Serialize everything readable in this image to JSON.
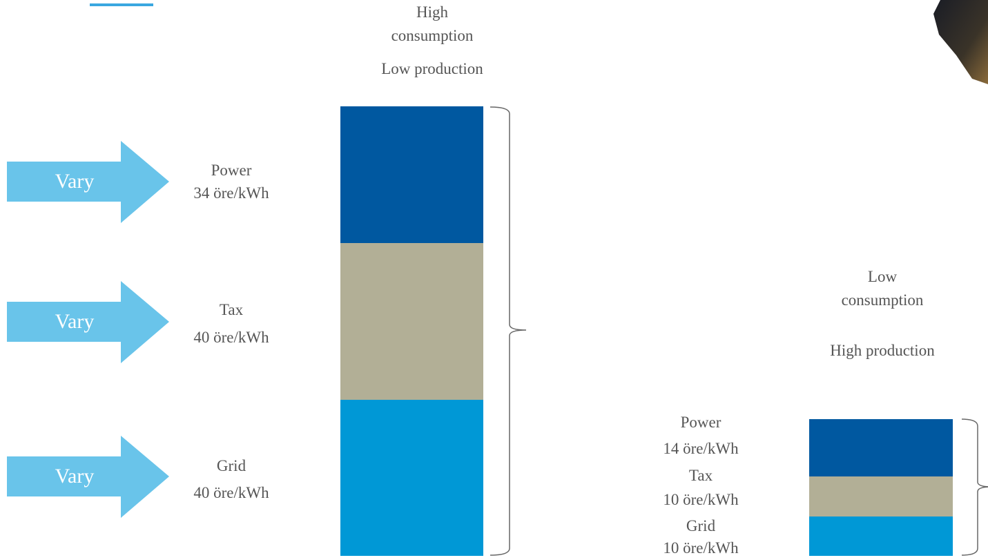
{
  "arrows": [
    {
      "label": "Vary"
    },
    {
      "label": "Vary"
    },
    {
      "label": "Vary"
    }
  ],
  "high_scenario": {
    "consumption": "High consumption",
    "production": "Low production",
    "components": [
      {
        "name": "Power",
        "price": "34 öre/kWh"
      },
      {
        "name": "Tax",
        "price": "40 öre/kWh"
      },
      {
        "name": "Grid",
        "price": "40 öre/kWh"
      }
    ]
  },
  "low_scenario": {
    "consumption": "Low consumption",
    "production": "High production",
    "components": [
      {
        "name": "Power",
        "price": "14 öre/kWh"
      },
      {
        "name": "Tax",
        "price": "10 öre/kWh"
      },
      {
        "name": "Grid",
        "price": "10 öre/kWh"
      }
    ]
  }
}
